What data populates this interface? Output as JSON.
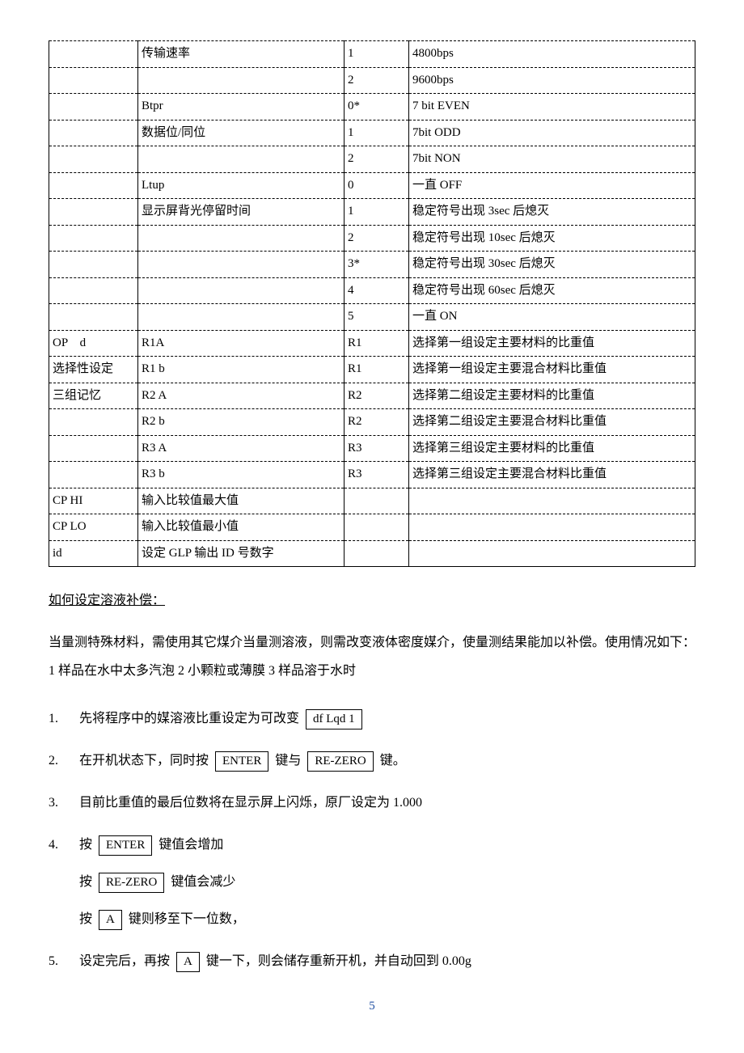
{
  "table": {
    "rows": [
      {
        "c1": "",
        "c2": "传输速率",
        "c3": "1",
        "c4": "4800bps"
      },
      {
        "c1": "",
        "c2": "",
        "c3": "2",
        "c4": "9600bps"
      },
      {
        "c1": "",
        "c2": "Btpr",
        "c3": "0*",
        "c4": "7 bit EVEN"
      },
      {
        "c1": "",
        "c2": "数据位/同位",
        "c3": "1",
        "c4": "7bit ODD"
      },
      {
        "c1": "",
        "c2": "",
        "c3": "2",
        "c4": "7bit NON"
      },
      {
        "c1": "",
        "c2": "Ltup",
        "c3": "0",
        "c4": "一直 OFF"
      },
      {
        "c1": "",
        "c2": "显示屏背光停留时间",
        "c3": "1",
        "c4": "稳定符号出现 3sec 后熄灭"
      },
      {
        "c1": "",
        "c2": "",
        "c3": "2",
        "c4": "稳定符号出现 10sec 后熄灭"
      },
      {
        "c1": "",
        "c2": "",
        "c3": "3*",
        "c4": "稳定符号出现 30sec 后熄灭"
      },
      {
        "c1": "",
        "c2": "",
        "c3": "4",
        "c4": "稳定符号出现 60sec 后熄灭"
      },
      {
        "c1": "",
        "c2": "",
        "c3": "5",
        "c4": "一直 ON"
      },
      {
        "c1": "OP　d",
        "c2": "R1A",
        "c3": "R1",
        "c4": "选择第一组设定主要材料的比重值"
      },
      {
        "c1": "选择性设定",
        "c2": "R1 b",
        "c3": "R1",
        "c4": "选择第一组设定主要混合材料比重值"
      },
      {
        "c1": "三组记忆",
        "c2": "R2 A",
        "c3": "R2",
        "c4": "选择第二组设定主要材料的比重值"
      },
      {
        "c1": "",
        "c2": "R2 b",
        "c3": "R2",
        "c4": "选择第二组设定主要混合材料比重值"
      },
      {
        "c1": "",
        "c2": "R3 A",
        "c3": "R3",
        "c4": "选择第三组设定主要材料的比重值"
      },
      {
        "c1": "",
        "c2": "R3 b",
        "c3": "R3",
        "c4": "选择第三组设定主要混合材料比重值"
      },
      {
        "c1": "CP HI",
        "c2": "输入比较值最大值",
        "c3": "",
        "c4": ""
      },
      {
        "c1": "CP LO",
        "c2": "输入比较值最小值",
        "c3": "",
        "c4": ""
      },
      {
        "c1": "id",
        "c2": "设定 GLP 输出 ID 号数字",
        "c3": "",
        "c4": ""
      }
    ]
  },
  "section_header": "如何设定溶液补偿：",
  "paragraph": "当量测特殊材料，需使用其它煤介当量测溶液，则需改变液体密度媒介，使量测结果能加以补偿。使用情况如下：1 样品在水中太多汽泡  2 小颗粒或薄膜  3 样品溶于水时",
  "steps": {
    "s1_pre": "先将程序中的媒溶液比重设定为可改变",
    "s1_box": "df Lqd 1",
    "s2_pre": "在开机状态下，同时按",
    "s2_box1": "ENTER",
    "s2_mid": "键与",
    "s2_box2": "RE-ZERO",
    "s2_post": "键。",
    "s3": "目前比重值的最后位数将在显示屏上闪烁，原厂设定为 1.000",
    "s4_l1_pre": "按",
    "s4_l1_box": "ENTER",
    "s4_l1_post": "键值会增加",
    "s4_l2_pre": "按",
    "s4_l2_box": "RE-ZERO",
    "s4_l2_post": "键值会减少",
    "s4_l3_pre": "按",
    "s4_l3_box": "A",
    "s4_l3_post": "键则移至下一位数，",
    "s5_pre": "设定完后，再按",
    "s5_box": "A",
    "s5_post": "键一下，则会储存重新开机，并自动回到 0.00g"
  },
  "page_number": "5"
}
